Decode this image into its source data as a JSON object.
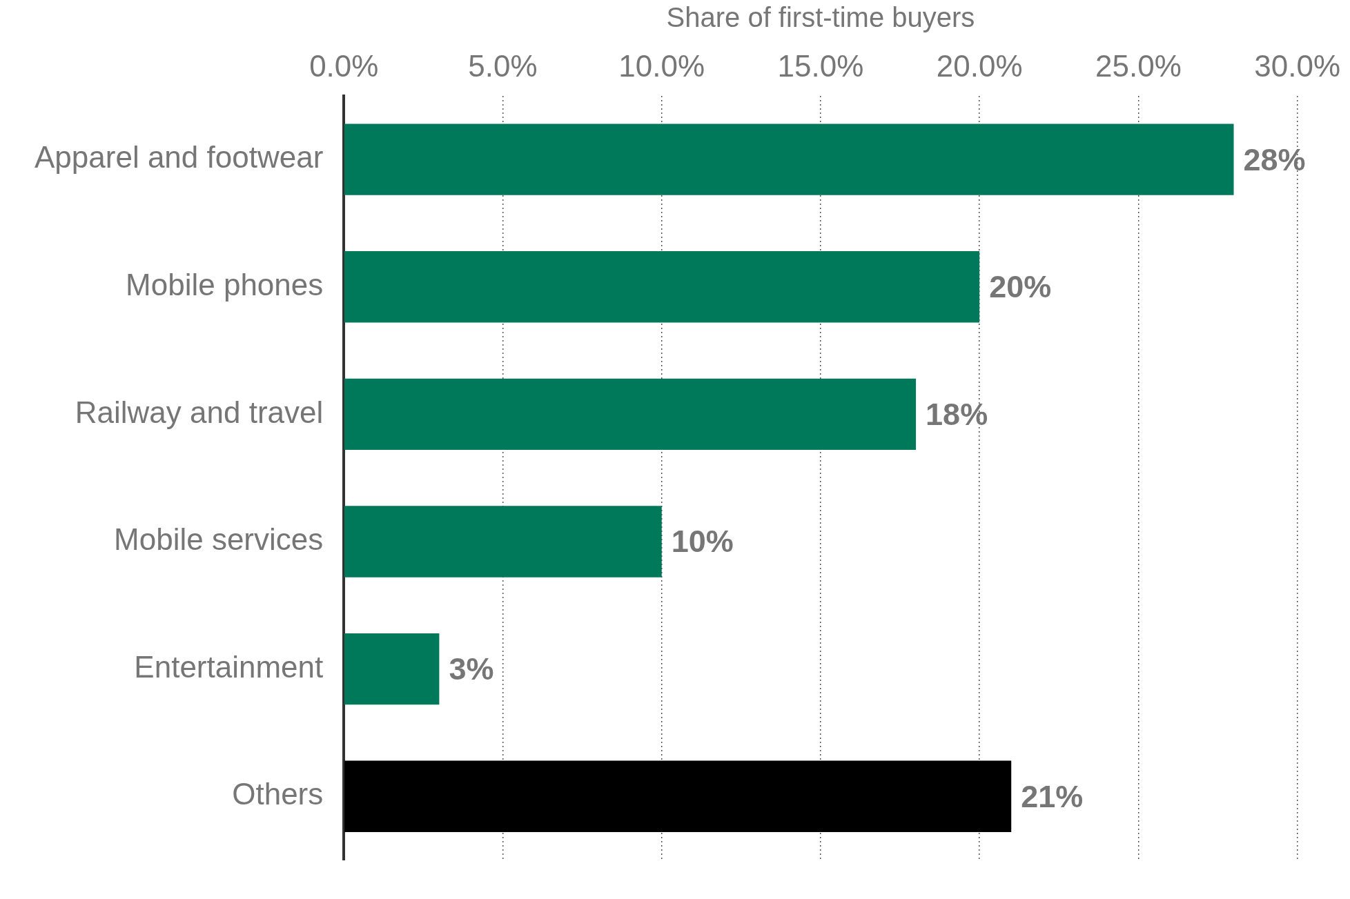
{
  "chart_data": {
    "type": "bar",
    "orientation": "horizontal",
    "xlabel": "Share of first-time buyers",
    "categories": [
      "Apparel and footwear",
      "Mobile phones",
      "Railway and travel",
      "Mobile services",
      "Entertainment",
      "Others"
    ],
    "values": [
      28,
      20,
      18,
      10,
      3,
      21
    ],
    "colors": [
      "#00785a",
      "#00785a",
      "#00785a",
      "#00785a",
      "#00785a",
      "#000000"
    ],
    "value_labels": [
      "28%",
      "20%",
      "18%",
      "10%",
      "3%",
      "21%"
    ],
    "xlim": [
      0,
      30
    ],
    "xticks": [
      {
        "value": 0,
        "label": "0.0%"
      },
      {
        "value": 5,
        "label": "5.0%"
      },
      {
        "value": 10,
        "label": "10.0%"
      },
      {
        "value": 15,
        "label": "15.0%"
      },
      {
        "value": 20,
        "label": "20.0%"
      },
      {
        "value": 25,
        "label": "25.0%"
      },
      {
        "value": 30,
        "label": "30.0%"
      }
    ],
    "grid": "x",
    "legend": false
  }
}
